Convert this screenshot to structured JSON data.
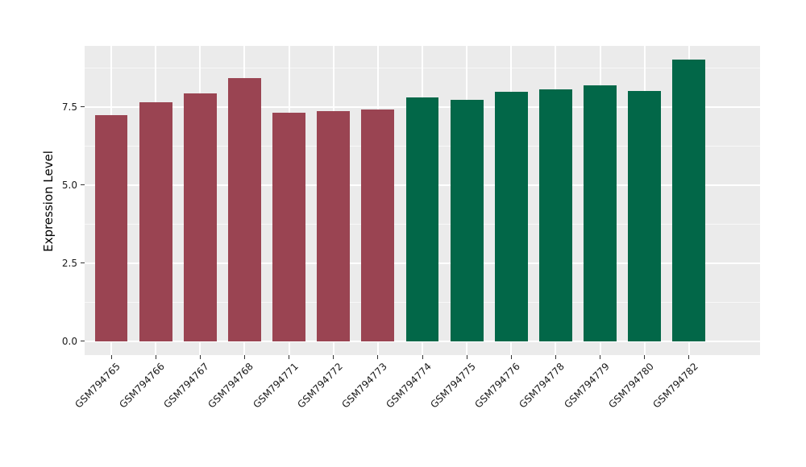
{
  "figure": {
    "background_color": "#FFFFFF",
    "panel_background_color": "#EBEBEB",
    "gridline_color": "#FFFFFF",
    "tick_mark_color": "#333333",
    "axis_text_color": "#1A1A1A",
    "axis_title_color": "#000000"
  },
  "chart_data": {
    "type": "bar",
    "title": "",
    "xlabel": "",
    "ylabel": "Expression Level",
    "categories": [
      "GSM794765",
      "GSM794766",
      "GSM794767",
      "GSM794768",
      "GSM794771",
      "GSM794772",
      "GSM794773",
      "GSM794774",
      "GSM794775",
      "GSM794776",
      "GSM794778",
      "GSM794779",
      "GSM794780",
      "GSM794782"
    ],
    "values": [
      7.23,
      7.65,
      7.94,
      8.42,
      7.31,
      7.36,
      7.42,
      7.81,
      7.71,
      7.98,
      8.05,
      8.18,
      8.01,
      9.0
    ],
    "bar_colors": [
      "#9A4452",
      "#9A4452",
      "#9A4452",
      "#9A4452",
      "#9A4452",
      "#9A4452",
      "#9A4452",
      "#026748",
      "#026748",
      "#026748",
      "#026748",
      "#026748",
      "#026748",
      "#026748"
    ],
    "group_colors": {
      "left_group": "#9A4452",
      "right_group": "#026748"
    },
    "yticks": [
      0.0,
      2.5,
      5.0,
      7.5
    ],
    "ytick_labels": [
      "0.0",
      "2.5",
      "5.0",
      "7.5"
    ],
    "yticks_minor": [
      1.25,
      3.75,
      6.25,
      8.75
    ],
    "ylim": [
      -0.45,
      9.45
    ],
    "xtick_rotation_deg": 45,
    "legend": "none",
    "grid": {
      "horizontal": "major+minor",
      "vertical": "major"
    }
  }
}
